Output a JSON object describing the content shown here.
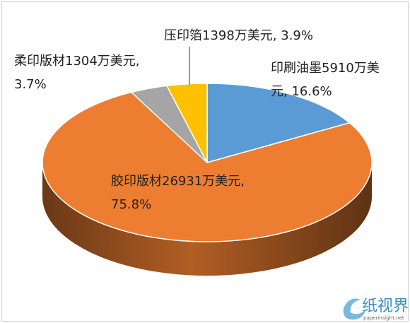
{
  "chart_data": {
    "type": "pie3d",
    "categories": [
      "印刷油墨",
      "胶印版材",
      "柔印版材",
      "压印箔"
    ],
    "values": [
      5910,
      26931,
      1304,
      1398
    ],
    "value_labels": [
      "印刷油墨5910万美元, 16.6%",
      "胶印版材26931万美元, 75.8%",
      "柔印版材1304万美元, 3.7%",
      "压印箔1398万美元, 3.9%"
    ],
    "colors": [
      "#5b9bd5",
      "#ed7d31",
      "#a5a5a5",
      "#ffc000"
    ]
  },
  "watermark": {
    "brand": "纸视界",
    "url": "paperinsight.net"
  }
}
